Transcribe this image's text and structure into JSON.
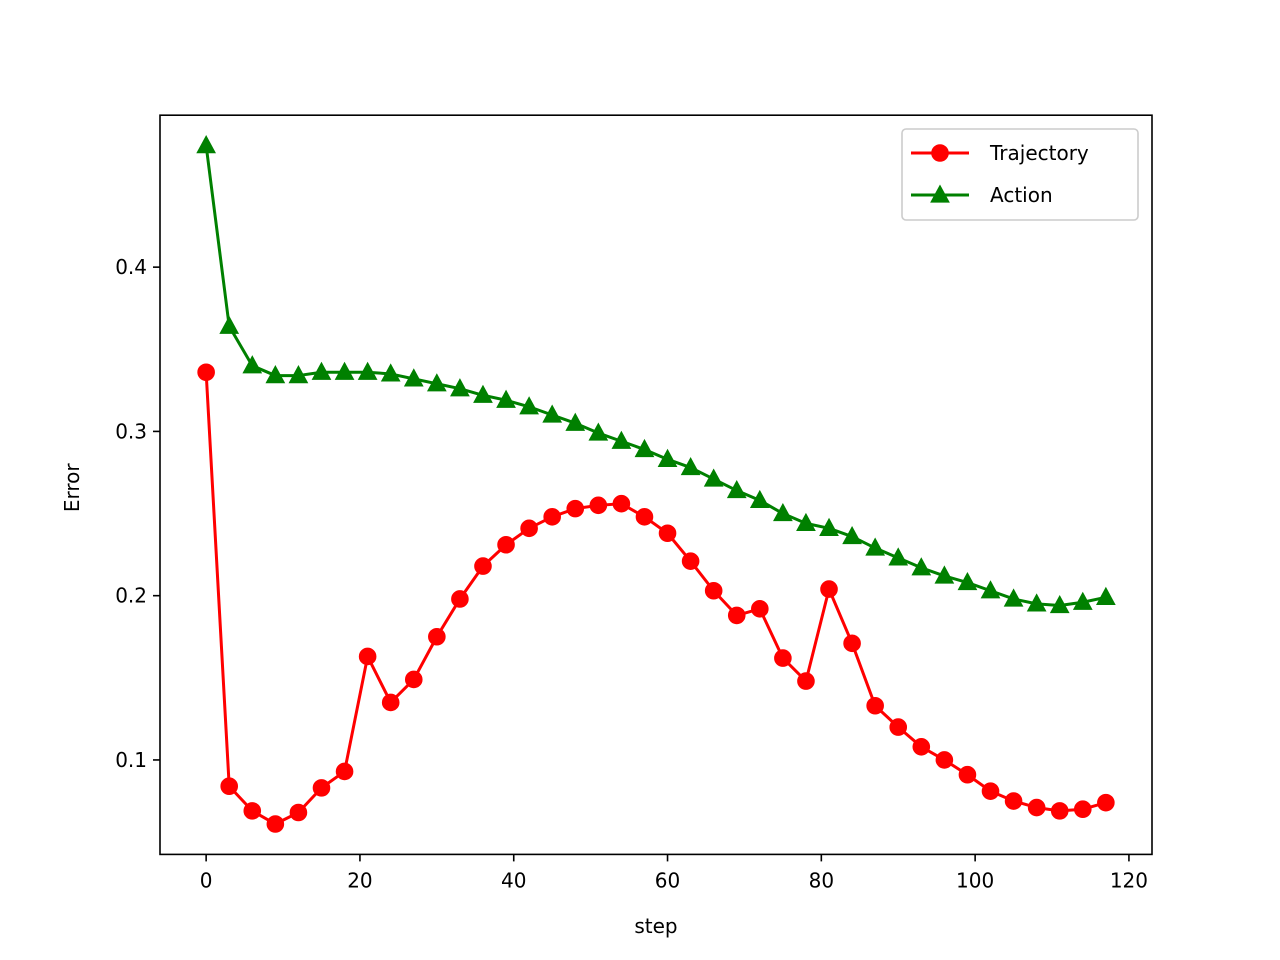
{
  "chart_data": {
    "type": "line",
    "title": "",
    "xlabel": "step",
    "ylabel": "Error",
    "xlim": [
      -6,
      123
    ],
    "ylim": [
      0.0425,
      0.4925
    ],
    "xticks": [
      0,
      20,
      40,
      60,
      80,
      100,
      120
    ],
    "yticks": [
      0.1,
      0.2,
      0.3,
      0.4
    ],
    "xtick_labels": [
      "0",
      "20",
      "40",
      "60",
      "80",
      "100",
      "120"
    ],
    "ytick_labels": [
      "0.1",
      "0.2",
      "0.3",
      "0.4"
    ],
    "grid": false,
    "legend_position": "top-right",
    "x": [
      0,
      3,
      6,
      9,
      12,
      15,
      18,
      21,
      24,
      27,
      30,
      33,
      36,
      39,
      42,
      45,
      48,
      51,
      54,
      57,
      60,
      63,
      66,
      69,
      72,
      75,
      78,
      81,
      84,
      87,
      90,
      93,
      96,
      99,
      102,
      105,
      108,
      111,
      114,
      117
    ],
    "series": [
      {
        "name": "Trajectory",
        "color": "#ff0000",
        "marker": "circle",
        "values": [
          0.336,
          0.084,
          0.069,
          0.061,
          0.068,
          0.083,
          0.093,
          0.163,
          0.135,
          0.149,
          0.175,
          0.198,
          0.218,
          0.231,
          0.241,
          0.248,
          0.253,
          0.255,
          0.256,
          0.248,
          0.238,
          0.221,
          0.203,
          0.188,
          0.192,
          0.162,
          0.148,
          0.204,
          0.171,
          0.133,
          0.12,
          0.108,
          0.1,
          0.091,
          0.081,
          0.075,
          0.071,
          0.069,
          0.07,
          0.074
        ]
      },
      {
        "name": "Action",
        "color": "#008000",
        "marker": "triangle",
        "values": [
          0.474,
          0.364,
          0.34,
          0.334,
          0.334,
          0.336,
          0.336,
          0.336,
          0.335,
          0.332,
          0.329,
          0.326,
          0.322,
          0.319,
          0.315,
          0.31,
          0.305,
          0.299,
          0.294,
          0.289,
          0.283,
          0.278,
          0.271,
          0.264,
          0.258,
          0.25,
          0.244,
          0.241,
          0.236,
          0.229,
          0.223,
          0.217,
          0.212,
          0.208,
          0.203,
          0.198,
          0.195,
          0.194,
          0.196,
          0.199
        ]
      }
    ]
  }
}
